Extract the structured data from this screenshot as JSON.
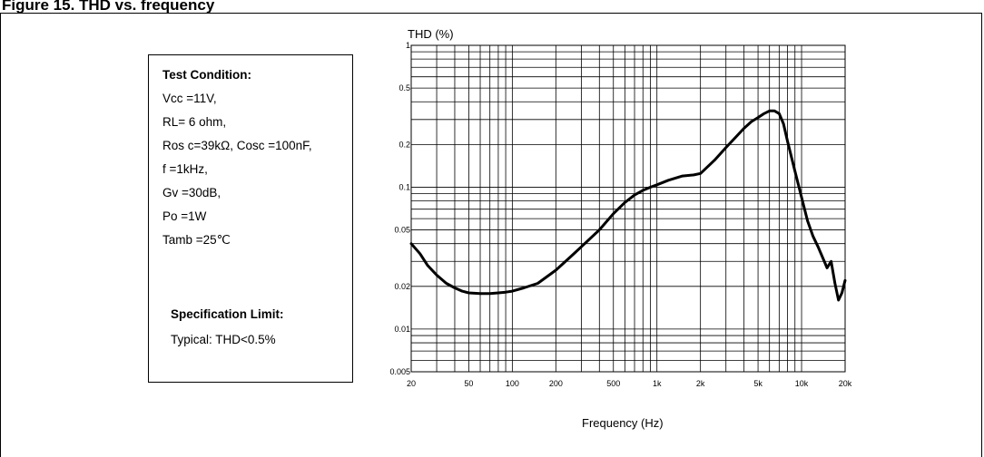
{
  "page": {
    "heading": "Figure 15. THD vs. frequency"
  },
  "conditions": {
    "title": "Test Condition:",
    "lines": [
      "Vcc =11V,",
      "RL= 6 ohm,",
      "Ros c=39kΩ, Cosc =100nF,",
      "f =1kHz,",
      "Gv =30dB,",
      " Po =1W",
      " Tamb =25℃"
    ],
    "spec_title": "Specification Limit:",
    "spec_value": "Typical: THD<0.5%"
  },
  "chart_data": {
    "type": "line",
    "title": "",
    "xlabel": "Frequency (Hz)",
    "ylabel": "THD (%)",
    "xscale": "log",
    "yscale": "log",
    "xlim": [
      20,
      20000
    ],
    "ylim": [
      0.005,
      1
    ],
    "grid": true,
    "x_ticks": [
      20,
      50,
      100,
      200,
      500,
      1000,
      2000,
      5000,
      10000,
      20000
    ],
    "x_tick_labels": [
      "20",
      "50",
      "100",
      "200",
      "500",
      "1k",
      "2k",
      "5k",
      "10k",
      "20k"
    ],
    "y_ticks": [
      0.005,
      0.01,
      0.02,
      0.05,
      0.1,
      0.2,
      0.5,
      1
    ],
    "y_tick_labels": [
      "0.005",
      "0.01",
      "0.02",
      "0.05",
      "0.1",
      "0.2",
      "0.5",
      "1"
    ],
    "series": [
      {
        "name": "",
        "color": "#000000",
        "x": [
          20,
          23,
          26,
          30,
          35,
          40,
          45,
          50,
          60,
          70,
          80,
          90,
          100,
          120,
          150,
          200,
          250,
          300,
          400,
          500,
          600,
          700,
          800,
          900,
          1000,
          1200,
          1500,
          1800,
          2000,
          2500,
          3000,
          3500,
          4000,
          4500,
          5000,
          5500,
          6000,
          6500,
          7000,
          7500,
          8000,
          9000,
          10000,
          11000,
          12000,
          13000,
          15000,
          16000,
          17000,
          18000,
          19000,
          20000
        ],
        "y": [
          0.04,
          0.034,
          0.028,
          0.024,
          0.021,
          0.0195,
          0.0185,
          0.018,
          0.0178,
          0.0178,
          0.018,
          0.0182,
          0.0185,
          0.0195,
          0.021,
          0.026,
          0.032,
          0.038,
          0.05,
          0.065,
          0.078,
          0.088,
          0.095,
          0.1,
          0.104,
          0.112,
          0.12,
          0.122,
          0.125,
          0.155,
          0.19,
          0.225,
          0.26,
          0.29,
          0.31,
          0.33,
          0.345,
          0.345,
          0.33,
          0.28,
          0.21,
          0.13,
          0.085,
          0.058,
          0.045,
          0.038,
          0.027,
          0.03,
          0.021,
          0.016,
          0.018,
          0.022
        ]
      }
    ]
  }
}
